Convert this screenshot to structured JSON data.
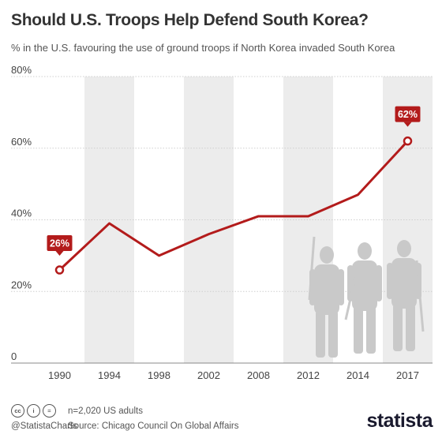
{
  "title": "Should U.S. Troops Help Defend South Korea?",
  "subtitle": "% in the U.S. favouring the use of ground troops if North Korea invaded South Korea",
  "footer": {
    "note": "n=2,020 US adults",
    "source": "Source: Chicago Council On Global Affairs",
    "handle": "@StatistaCharts",
    "logo": "statista",
    "cc_icons": [
      "cc",
      "i",
      "="
    ]
  },
  "colors": {
    "line": "#b31b1b",
    "band": "#ececec",
    "grid": "#cfcfcf",
    "silhouette": "#c9c9c9"
  },
  "chart_data": {
    "type": "line",
    "categories": [
      "1990",
      "1994",
      "1998",
      "2002",
      "2008",
      "2012",
      "2014",
      "2017"
    ],
    "series": [
      {
        "values": [
          26,
          39,
          30,
          36,
          41,
          41,
          47,
          62
        ]
      }
    ],
    "yticks": [
      "0",
      "20%",
      "40%",
      "60%",
      "80%"
    ],
    "ylim": [
      0,
      80
    ],
    "grid": true,
    "callouts": [
      {
        "index": 0,
        "label": "26%"
      },
      {
        "index": 7,
        "label": "62%"
      }
    ]
  }
}
